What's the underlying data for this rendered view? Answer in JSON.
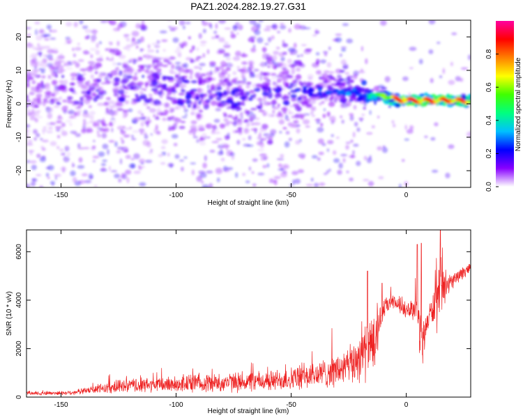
{
  "chart_data": [
    {
      "type": "heatmap",
      "title": "PAZ1.2024.282.19.27.G31",
      "xlabel": "Height of straight line (km)",
      "ylabel": "Frequency (Hz)",
      "xlim": [
        -165,
        28
      ],
      "ylim": [
        -25,
        25
      ],
      "xticks": [
        -150,
        -100,
        -50,
        0
      ],
      "yticks": [
        -20,
        -10,
        0,
        10,
        20
      ],
      "colorbar": {
        "label": "Normalized spectral amplitude",
        "range": [
          0,
          1
        ],
        "ticks": [
          0.0,
          0.2,
          0.4,
          0.6,
          0.8
        ],
        "colormap": [
          "#ffffff",
          "#8800ff",
          "#0000ff",
          "#00c0ff",
          "#00ff80",
          "#40ff00",
          "#ffff00",
          "#ff8000",
          "#ff0000",
          "#ff00a0"
        ]
      },
      "ridge": [
        {
          "x": -165,
          "f": 4.0,
          "spread": 10.0,
          "amp": 0.12
        },
        {
          "x": -140,
          "f": 4.5,
          "spread": 9.5,
          "amp": 0.15
        },
        {
          "x": -120,
          "f": 5.0,
          "spread": 9.0,
          "amp": 0.17
        },
        {
          "x": -100,
          "f": 4.0,
          "spread": 8.0,
          "amp": 0.18
        },
        {
          "x": -80,
          "f": 1.0,
          "spread": 7.5,
          "amp": 0.18
        },
        {
          "x": -60,
          "f": 2.0,
          "spread": 6.5,
          "amp": 0.18
        },
        {
          "x": -45,
          "f": 4.0,
          "spread": 4.5,
          "amp": 0.2
        },
        {
          "x": -35,
          "f": 3.5,
          "spread": 3.0,
          "amp": 0.22
        },
        {
          "x": -25,
          "f": 4.0,
          "spread": 2.0,
          "amp": 0.28
        },
        {
          "x": -18,
          "f": 2.0,
          "spread": 1.6,
          "amp": 0.35
        },
        {
          "x": -10,
          "f": 2.5,
          "spread": 1.0,
          "amp": 0.55
        },
        {
          "x": -5,
          "f": 1.5,
          "spread": 0.8,
          "amp": 0.75
        },
        {
          "x": 0,
          "f": 1.0,
          "spread": 0.7,
          "amp": 0.85
        },
        {
          "x": 10,
          "f": 1.0,
          "spread": 0.7,
          "amp": 0.8
        },
        {
          "x": 20,
          "f": 1.0,
          "spread": 0.7,
          "amp": 0.8
        },
        {
          "x": 28,
          "f": 0.8,
          "spread": 0.7,
          "amp": 0.75
        }
      ]
    },
    {
      "type": "line",
      "xlabel": "Height of straight line (km)",
      "ylabel": "SNR (10 * v/v)",
      "xlim": [
        -165,
        28
      ],
      "ylim": [
        0,
        6900
      ],
      "xticks": [
        -150,
        -100,
        -50,
        0
      ],
      "yticks": [
        0,
        2000,
        4000,
        6000
      ],
      "color": "#ee2222",
      "series": [
        {
          "x": [
            -165,
            -160,
            -150,
            -145,
            -140,
            -135,
            -130,
            -125,
            -120,
            -115,
            -110,
            -105,
            -100,
            -95,
            -90,
            -85,
            -80,
            -75,
            -70,
            -65,
            -60,
            -55,
            -50,
            -45,
            -40,
            -35,
            -30,
            -25,
            -22,
            -20,
            -18,
            -15,
            -13,
            -12,
            -10,
            -8,
            -5,
            -2,
            0,
            2,
            4,
            5,
            6,
            7,
            8,
            9,
            10,
            12,
            14,
            15,
            16,
            18,
            20,
            22,
            24,
            26,
            28
          ],
          "mean": [
            150,
            160,
            170,
            190,
            250,
            320,
            380,
            430,
            460,
            480,
            500,
            520,
            540,
            560,
            580,
            580,
            600,
            600,
            620,
            640,
            660,
            700,
            760,
            820,
            900,
            1000,
            1100,
            1250,
            1500,
            1800,
            1900,
            2000,
            2200,
            3000,
            3600,
            3800,
            3900,
            3700,
            3500,
            3700,
            3600,
            3200,
            2600,
            2200,
            2700,
            3000,
            3400,
            3700,
            3900,
            4200,
            4500,
            4600,
            4800,
            4900,
            5100,
            5200,
            5300
          ],
          "amp": [
            90,
            90,
            100,
            110,
            150,
            220,
            260,
            300,
            330,
            350,
            370,
            380,
            400,
            420,
            430,
            440,
            450,
            460,
            470,
            480,
            500,
            520,
            560,
            600,
            650,
            700,
            800,
            900,
            1100,
            1300,
            1400,
            1400,
            1200,
            800,
            500,
            400,
            350,
            300,
            300,
            400,
            700,
            1000,
            1200,
            1000,
            800,
            600,
            500,
            900,
            1600,
            1700,
            900,
            500,
            350,
            300,
            300,
            280,
            260
          ],
          "markers": [
            {
              "x": 4.8,
              "y": 6300
            },
            {
              "x": 6.5,
              "y": 6350
            },
            {
              "x": 7.0,
              "y": 1750
            },
            {
              "x": 14.8,
              "y": 6900
            },
            {
              "x": -16.8,
              "y": 5200
            },
            {
              "x": -10.5,
              "y": 4700
            }
          ]
        }
      ]
    }
  ]
}
